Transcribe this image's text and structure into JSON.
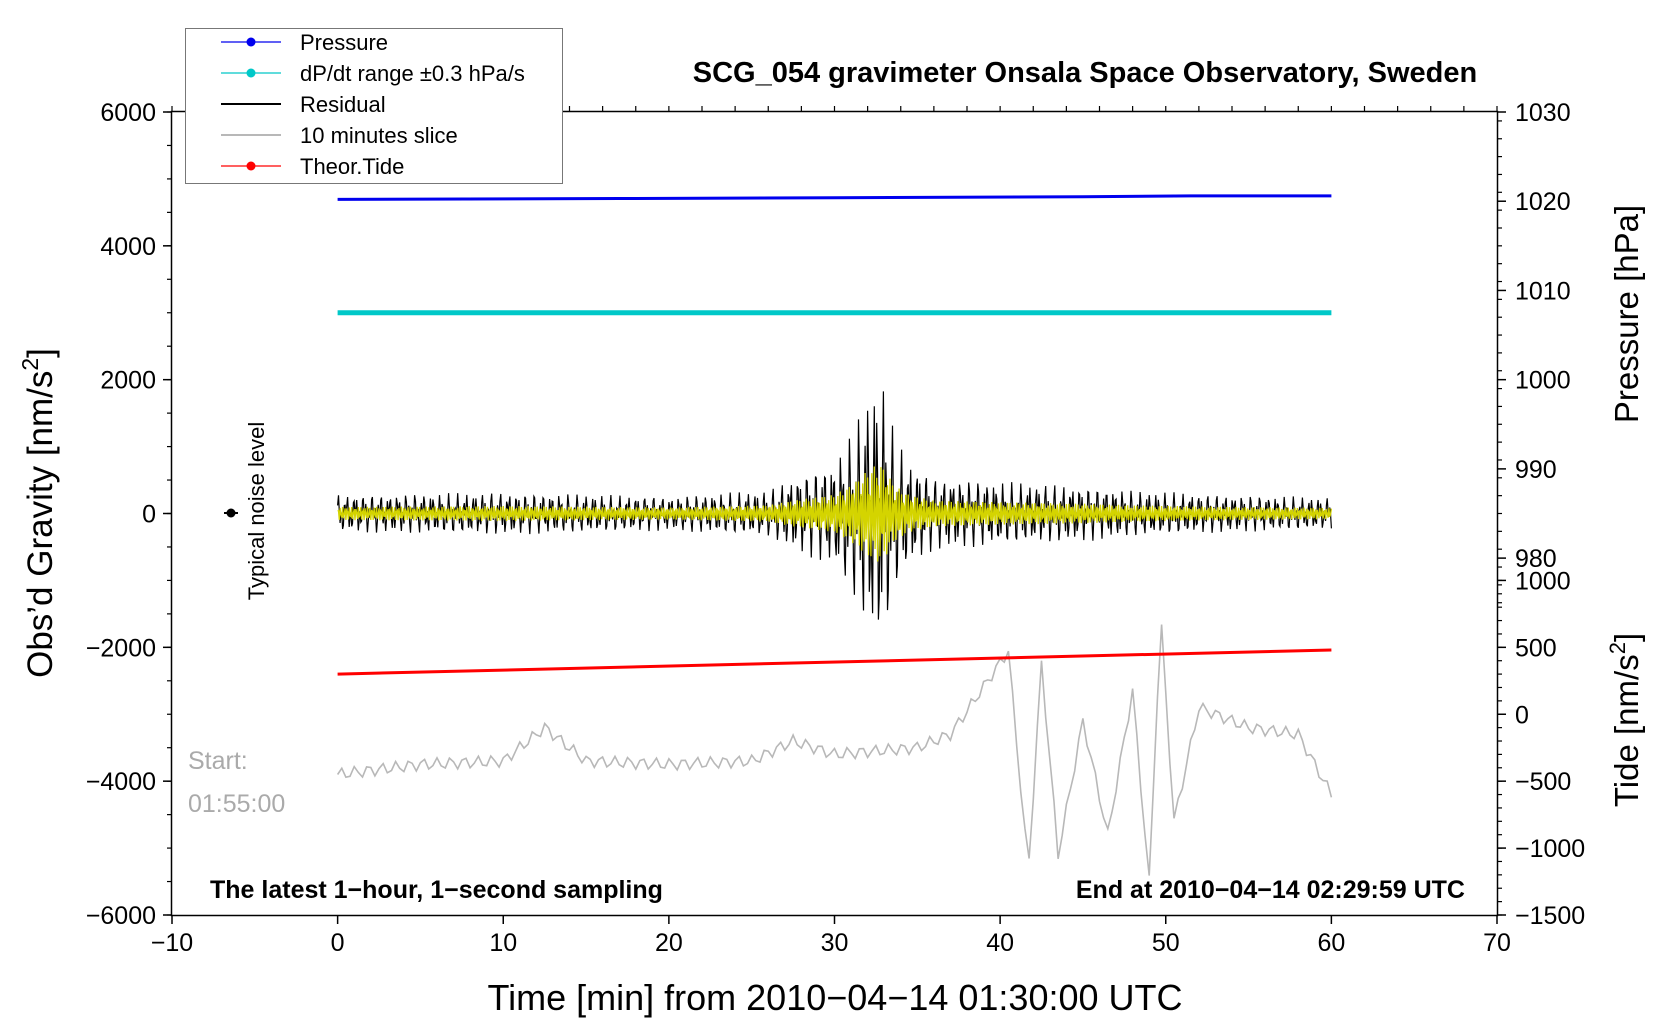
{
  "chart_data": {
    "type": "line",
    "title": "SCG_054 gravimeter Onsala Space Observatory, Sweden",
    "xlabel": "Time [min] from 2010−04−14 01:30:00 UTC",
    "ylabel_left": "Obs’d Gravity [nm/s",
    "ylabel_left_sup": "2",
    "ylabel_left_end": "]",
    "ylabel_right_top": "Pressure [hPa]",
    "ylabel_right_bottom": "Tide [nm/s",
    "ylabel_right_bottom_sup": "2",
    "ylabel_right_bottom_end": "]",
    "xlim": [
      -10,
      70
    ],
    "ylim": [
      -6000,
      6000
    ],
    "pressure_axis_lim": [
      940,
      1030
    ],
    "tide_axis_lim": [
      -1500,
      4500
    ],
    "x_ticks": [
      "−10",
      "0",
      "10",
      "20",
      "30",
      "40",
      "50",
      "60",
      "70"
    ],
    "x_tick_values": [
      -10,
      0,
      10,
      20,
      30,
      40,
      50,
      60,
      70
    ],
    "y_ticks_left": [
      "−6000",
      "−4000",
      "−2000",
      "0",
      "2000",
      "4000",
      "6000"
    ],
    "y_tick_values_left": [
      -6000,
      -4000,
      -2000,
      0,
      2000,
      4000,
      6000
    ],
    "y_ticks_pressure": [
      "980",
      "990",
      "1000",
      "1010",
      "1020",
      "1030"
    ],
    "y_tick_values_pressure": [
      980,
      990,
      1000,
      1010,
      1020,
      1030
    ],
    "y_ticks_tide": [
      "−1500",
      "−1000",
      "−500",
      "0",
      "500",
      "1000"
    ],
    "y_tick_values_tide": [
      -1500,
      -1000,
      -500,
      0,
      500,
      1000
    ],
    "legend_placement": "top-left",
    "legend": [
      {
        "label": "Pressure",
        "color": "#0000ee",
        "marker": true
      },
      {
        "label": "dP/dt range ±0.3 hPa/s",
        "color": "#00c8c8",
        "marker": true
      },
      {
        "label": "Residual",
        "color": "#000000",
        "marker": false
      },
      {
        "label": "10 minutes slice",
        "color": "#b8b8b8",
        "marker": false
      },
      {
        "label": "Theor.Tide",
        "color": "#ff0000",
        "marker": true
      }
    ],
    "annotations": {
      "noise": "Typical noise level",
      "start_label": "Start:",
      "start_time": "01:55:00",
      "bottom_left": "The latest 1−hour, 1−second sampling",
      "bottom_right": "End at 2010−04−14 02:29:59 UTC"
    },
    "series": [
      {
        "name": "Pressure",
        "color": "#0000ee",
        "axis": "pressure",
        "x": [
          0,
          17,
          30,
          45,
          51.5,
          60
        ],
        "y": [
          1020.2,
          1020.3,
          1020.4,
          1020.5,
          1020.6,
          1020.6
        ]
      },
      {
        "name": "dP/dt range ±0.3 hPa/s",
        "color": "#00c8c8",
        "axis": "gravity",
        "x": [
          0,
          60
        ],
        "y": [
          3000,
          3000
        ]
      },
      {
        "name": "Theor.Tide",
        "color": "#ff0000",
        "axis": "tide",
        "x": [
          0,
          60
        ],
        "y": [
          300,
          480
        ]
      },
      {
        "name": "Residual",
        "color": "#000000",
        "axis": "gravity",
        "x": [
          0,
          10,
          20,
          26,
          27.5,
          30,
          31,
          31.8,
          32.3,
          32.8,
          33.2,
          33.6,
          34.5,
          36,
          38,
          40,
          42.5,
          45,
          48,
          52,
          56,
          60
        ],
        "y": [
          280,
          320,
          260,
          350,
          550,
          800,
          1200,
          1700,
          2000,
          2100,
          1700,
          1200,
          800,
          550,
          520,
          480,
          450,
          420,
          350,
          300,
          270,
          240
        ]
      },
      {
        "name": "10 minutes slice",
        "color": "#b8b8b8",
        "axis": "gravity",
        "x": [
          0,
          5,
          10,
          12.5,
          15,
          20,
          25,
          27.5,
          30,
          35,
          37,
          38,
          40.5,
          41.7,
          42.5,
          43.5,
          45,
          46.5,
          48,
          49,
          49.7,
          50.5,
          52,
          55,
          58,
          60
        ],
        "y": [
          -3900,
          -3750,
          -3700,
          -3200,
          -3700,
          -3750,
          -3700,
          -3400,
          -3600,
          -3500,
          -3300,
          -2950,
          -2050,
          -5350,
          -2250,
          -5100,
          -3100,
          -4800,
          -2650,
          -5500,
          -1550,
          -4600,
          -2900,
          -3200,
          -3300,
          -4200
        ]
      }
    ]
  }
}
